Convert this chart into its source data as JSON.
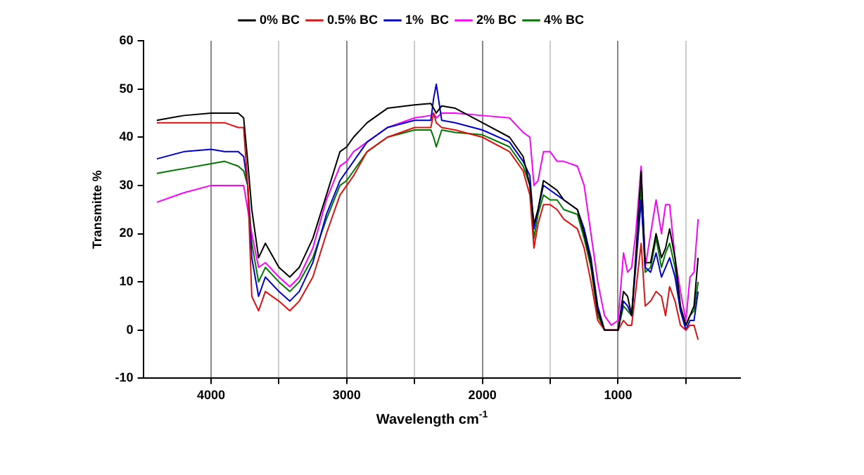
{
  "chart_data": {
    "type": "line",
    "xlabel": "Wavelength cm$^{-1}$",
    "ylabel": "Transmitte %",
    "x": [
      4400,
      4200,
      4000,
      3900,
      3800,
      3760,
      3730,
      3700,
      3650,
      3600,
      3500,
      3420,
      3350,
      3250,
      3150,
      3050,
      3000,
      2950,
      2850,
      2700,
      2500,
      2380,
      2360,
      2340,
      2300,
      2200,
      2000,
      1800,
      1700,
      1650,
      1620,
      1590,
      1550,
      1500,
      1450,
      1400,
      1300,
      1250,
      1200,
      1150,
      1100,
      1050,
      1000,
      960,
      930,
      900,
      870,
      830,
      800,
      760,
      720,
      680,
      650,
      620,
      580,
      540,
      500,
      470,
      440,
      410
    ],
    "series": [
      {
        "name": "0% BC",
        "color": "#000000",
        "values": [
          43.5,
          44.5,
          45,
          45,
          45,
          44,
          35,
          25,
          15,
          18,
          13,
          11,
          13,
          19,
          28,
          37,
          38,
          40,
          43,
          46,
          46.7,
          47,
          46,
          45,
          46.5,
          46,
          43,
          40,
          36,
          30,
          22,
          25,
          31,
          30,
          29,
          27,
          25,
          20,
          14,
          4,
          0,
          0,
          0,
          8,
          7,
          3,
          15,
          33,
          14,
          14,
          20,
          15,
          17,
          21,
          15,
          5,
          1,
          3,
          5,
          15
        ]
      },
      {
        "name": "0.5% BC",
        "color": "#e01010",
        "values": [
          43,
          43,
          43,
          43,
          42,
          42,
          30,
          7,
          4,
          8,
          6,
          4,
          6,
          11,
          20,
          28,
          30,
          32,
          37,
          40,
          42,
          42,
          45,
          43,
          42,
          41.5,
          40,
          37,
          33,
          28,
          17,
          22,
          26,
          26,
          25,
          23,
          21,
          17,
          10,
          2,
          0,
          0,
          0,
          2,
          1,
          1,
          8,
          18,
          5,
          6,
          8,
          7,
          3,
          9,
          6,
          1,
          0,
          1,
          1,
          -2
        ]
      },
      {
        "name": "1%  BC",
        "color": "#0000cc",
        "values": [
          35.5,
          37,
          37.5,
          37,
          37,
          36,
          30,
          15,
          7,
          11,
          8,
          6,
          8,
          14,
          24,
          31,
          33,
          35,
          39,
          42,
          43.5,
          43.5,
          48,
          51,
          43.5,
          43,
          41.5,
          39,
          35,
          32,
          21,
          25,
          30,
          29,
          28,
          27,
          25,
          21,
          15,
          5,
          0,
          0,
          0,
          6,
          5,
          3,
          13,
          27,
          13,
          12,
          16,
          11,
          13,
          15,
          11,
          4,
          0,
          2,
          2,
          8
        ]
      },
      {
        "name": "2% BC",
        "color": "#ff00ff",
        "values": [
          26.5,
          28.5,
          30,
          30,
          30,
          30,
          25,
          20,
          13,
          14,
          11,
          9,
          11,
          17,
          27,
          34,
          35,
          37,
          39,
          42,
          44,
          44.5,
          45,
          44,
          45,
          45,
          44.5,
          44,
          41,
          40,
          30,
          31,
          37,
          37,
          35,
          35,
          34,
          30,
          20,
          10,
          3,
          1,
          2,
          16,
          12,
          13,
          20,
          34,
          13,
          20,
          27,
          20,
          26,
          26,
          15,
          8,
          2,
          11,
          12,
          23
        ]
      },
      {
        "name": "4% BC",
        "color": "#007700",
        "values": [
          32.5,
          33.5,
          34.5,
          35,
          34,
          33,
          30,
          18,
          10,
          13,
          10,
          8,
          10,
          15,
          23,
          30,
          31,
          33,
          37,
          40,
          41.5,
          41.5,
          40,
          38,
          41.5,
          41,
          40.5,
          38,
          34,
          30,
          19,
          24,
          28,
          27,
          27,
          25,
          24,
          19,
          13,
          3,
          0,
          0,
          0,
          5,
          4,
          3,
          14,
          30,
          12,
          13,
          19,
          13,
          16,
          18,
          13,
          4,
          1,
          3,
          4,
          10
        ]
      }
    ],
    "xlim": [
      4500,
      100
    ],
    "xticks": [
      4000,
      {
        "value": 3500,
        "label": null
      },
      3000,
      {
        "value": 2500,
        "label": null
      },
      2000,
      {
        "value": 1500,
        "label": null
      },
      1000,
      {
        "value": 500,
        "label": null
      }
    ],
    "ylim": [
      -10,
      60
    ],
    "yticks": [
      -10,
      0,
      10,
      20,
      30,
      40,
      50,
      60
    ],
    "grid": "x",
    "legend": "top",
    "marker": "none",
    "line_style": "solid"
  }
}
